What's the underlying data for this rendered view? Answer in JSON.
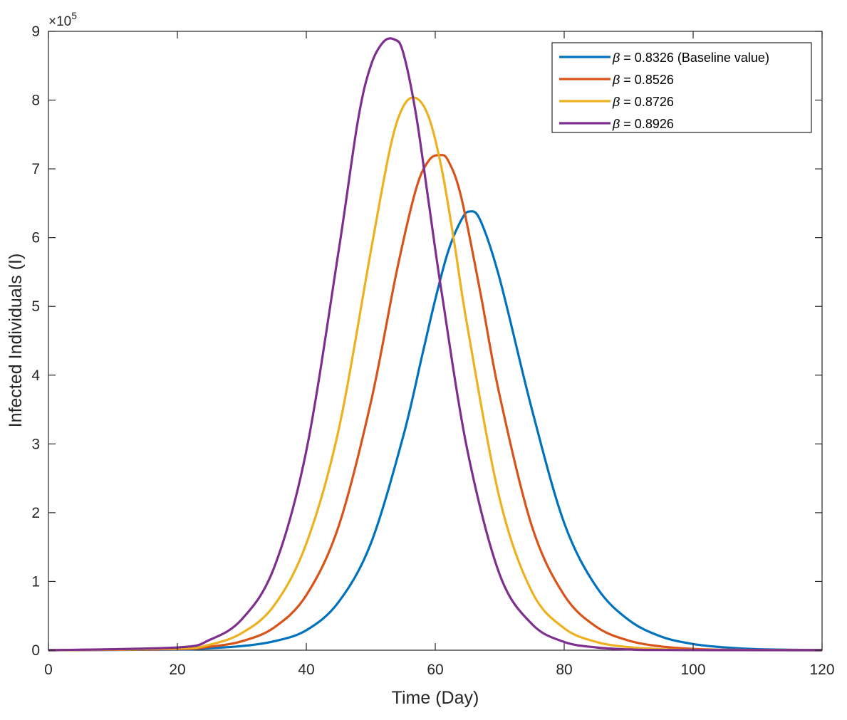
{
  "chart_data": {
    "type": "line",
    "title": "",
    "xlabel": "Time (Day)",
    "ylabel": "Infected Individuals (I)",
    "xlim": [
      0,
      120
    ],
    "ylim": [
      0,
      900000
    ],
    "xticks": [
      0,
      20,
      40,
      60,
      80,
      100,
      120
    ],
    "yticks": [
      0,
      100000,
      200000,
      300000,
      400000,
      500000,
      600000,
      700000,
      800000,
      900000
    ],
    "ytick_labels": [
      "0",
      "1",
      "2",
      "3",
      "4",
      "5",
      "6",
      "7",
      "8",
      "9"
    ],
    "y_multiplier_label": {
      "prefix": "×10",
      "exponent": "5"
    },
    "grid": false,
    "legend_position": "top-right",
    "series": [
      {
        "name": "β = 0.8326 (Baseline value)",
        "legend_symbol": "β",
        "legend_text": " = 0.8326 (Baseline value)",
        "color": "#0072BD",
        "x": [
          0,
          20,
          25,
          30,
          35,
          40,
          45,
          50,
          55,
          58,
          60,
          62,
          64,
          65.3,
          67,
          70,
          75,
          80,
          85,
          90,
          95,
          100,
          105,
          110,
          120
        ],
        "y": [
          0,
          1000,
          3000,
          6000,
          13000,
          29000,
          70000,
          155000,
          310000,
          430000,
          510000,
          580000,
          625000,
          638000,
          625000,
          540000,
          350000,
          185000,
          92000,
          44000,
          20000,
          9000,
          4000,
          1500,
          200
        ]
      },
      {
        "name": "β = 0.8526",
        "legend_symbol": "β",
        "legend_text": " = 0.8526",
        "color": "#D95319",
        "x": [
          0,
          20,
          25,
          30,
          35,
          40,
          45,
          50,
          54,
          57,
          59,
          60.7,
          62,
          64,
          67,
          70,
          75,
          80,
          85,
          90,
          95,
          100,
          105,
          120
        ],
        "y": [
          0,
          1500,
          5000,
          13000,
          33000,
          80000,
          180000,
          360000,
          550000,
          670000,
          712000,
          720000,
          712000,
          660000,
          520000,
          370000,
          180000,
          80000,
          34000,
          14000,
          5500,
          2000,
          700,
          0
        ]
      },
      {
        "name": "β = 0.8726",
        "legend_symbol": "β",
        "legend_text": " = 0.8726",
        "color": "#EDB120",
        "x": [
          0,
          20,
          25,
          30,
          35,
          40,
          45,
          50,
          53,
          55,
          57,
          59,
          61,
          63,
          65,
          70,
          75,
          80,
          85,
          90,
          95,
          100,
          120
        ],
        "y": [
          0,
          2500,
          8000,
          25000,
          65000,
          155000,
          320000,
          580000,
          730000,
          790000,
          803000,
          775000,
          700000,
          590000,
          470000,
          220000,
          85000,
          32000,
          12000,
          4500,
          1500,
          500,
          0
        ]
      },
      {
        "name": "β = 0.8926",
        "legend_symbol": "β",
        "legend_text": " = 0.8926",
        "color": "#7E2F8E",
        "x": [
          0,
          20,
          25,
          30,
          35,
          40,
          45,
          48,
          50,
          52,
          53.7,
          55,
          57,
          59,
          61,
          65,
          70,
          75,
          80,
          85,
          90,
          95,
          120
        ],
        "y": [
          0,
          4000,
          15000,
          45000,
          120000,
          290000,
          580000,
          770000,
          850000,
          885000,
          888000,
          870000,
          780000,
          650000,
          520000,
          290000,
          110000,
          38000,
          12000,
          4000,
          1200,
          300,
          0
        ]
      }
    ]
  }
}
